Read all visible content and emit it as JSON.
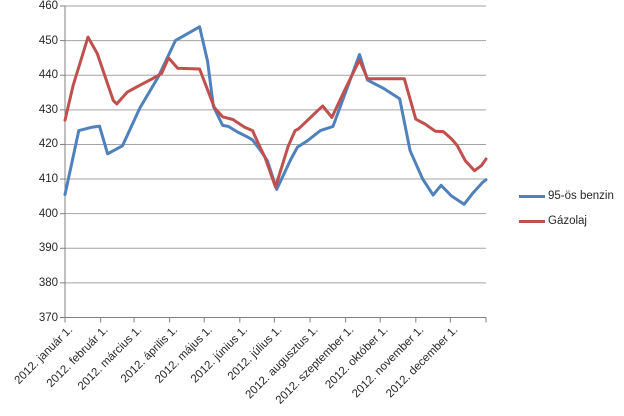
{
  "chart_data": {
    "type": "line",
    "title": "",
    "xlabel": "",
    "ylabel": "",
    "ylim": [
      370,
      460
    ],
    "yticks": [
      370,
      380,
      390,
      400,
      410,
      420,
      430,
      440,
      450,
      460
    ],
    "grid": true,
    "legend_position": "right",
    "gridline_color": "#a3a3a3",
    "axis_color": "#808080",
    "text_color": "#262626",
    "x_unit": "day_of_year_2012",
    "x_range_days": [
      0,
      366
    ],
    "xticks": [
      {
        "day": 0,
        "label": "2012. január 1."
      },
      {
        "day": 31,
        "label": "2012. február 1."
      },
      {
        "day": 60,
        "label": "2012. március 1."
      },
      {
        "day": 91,
        "label": "2012. április 1."
      },
      {
        "day": 121,
        "label": "2012. május 1."
      },
      {
        "day": 152,
        "label": "2012. június 1."
      },
      {
        "day": 182,
        "label": "2012. július 1."
      },
      {
        "day": 213,
        "label": "2012. augusztus 1."
      },
      {
        "day": 244,
        "label": "2012. szeptember 1."
      },
      {
        "day": 274,
        "label": "2012. október 1."
      },
      {
        "day": 305,
        "label": "2012. november 1."
      },
      {
        "day": 335,
        "label": "2012. december 1."
      },
      {
        "day": 366,
        "label": ""
      }
    ],
    "series": [
      {
        "id": "benzin",
        "name": "95-ös benzin",
        "color": "#4f81bd",
        "points": [
          [
            0,
            405.5
          ],
          [
            12,
            424
          ],
          [
            24,
            425
          ],
          [
            30,
            425.3
          ],
          [
            37,
            417.3
          ],
          [
            50,
            419.6
          ],
          [
            65,
            430.5
          ],
          [
            81,
            439.5
          ],
          [
            96,
            450
          ],
          [
            117,
            454
          ],
          [
            124,
            444
          ],
          [
            129,
            431
          ],
          [
            137,
            425.5
          ],
          [
            142,
            425.2
          ],
          [
            150,
            423.6
          ],
          [
            159,
            422.1
          ],
          [
            163,
            421.3
          ],
          [
            169,
            418.7
          ],
          [
            176,
            415.3
          ],
          [
            184,
            407
          ],
          [
            196,
            415.5
          ],
          [
            202,
            419.2
          ],
          [
            211,
            421.1
          ],
          [
            222,
            424
          ],
          [
            233,
            425.2
          ],
          [
            256,
            446
          ],
          [
            263,
            438.6
          ],
          [
            277,
            436.2
          ],
          [
            291,
            433.2
          ],
          [
            300,
            418.2
          ],
          [
            311,
            410
          ],
          [
            320,
            405.4
          ],
          [
            327,
            408.2
          ],
          [
            336,
            405.1
          ],
          [
            347,
            402.7
          ],
          [
            355,
            406.1
          ],
          [
            363,
            409
          ],
          [
            366,
            409.8
          ]
        ]
      },
      {
        "id": "gazolaj",
        "name": "Gázolaj",
        "color": "#c0504d",
        "points": [
          [
            0,
            427
          ],
          [
            7,
            437
          ],
          [
            20,
            451
          ],
          [
            28,
            446.3
          ],
          [
            36,
            438.5
          ],
          [
            42,
            432.7
          ],
          [
            45,
            431.7
          ],
          [
            54,
            435.1
          ],
          [
            65,
            437.1
          ],
          [
            76,
            439
          ],
          [
            84,
            440.5
          ],
          [
            90,
            445
          ],
          [
            98,
            442
          ],
          [
            117,
            441.8
          ],
          [
            130,
            430.6
          ],
          [
            137,
            428
          ],
          [
            146,
            427.2
          ],
          [
            156,
            425
          ],
          [
            163,
            424
          ],
          [
            169,
            419.6
          ],
          [
            174,
            416.2
          ],
          [
            183,
            407.7
          ],
          [
            194,
            419.5
          ],
          [
            200,
            424
          ],
          [
            203,
            424.5
          ],
          [
            211,
            427
          ],
          [
            220,
            429.9
          ],
          [
            224,
            431.1
          ],
          [
            232,
            427.8
          ],
          [
            243,
            435.6
          ],
          [
            256,
            444.4
          ],
          [
            263,
            439
          ],
          [
            295,
            439
          ],
          [
            305,
            427.3
          ],
          [
            313,
            425.9
          ],
          [
            322,
            423.8
          ],
          [
            329,
            423.7
          ],
          [
            336,
            421.6
          ],
          [
            341,
            419.7
          ],
          [
            348,
            415.3
          ],
          [
            356,
            412.4
          ],
          [
            362,
            413.9
          ],
          [
            366,
            415.8
          ]
        ]
      }
    ]
  },
  "legend": {
    "items": [
      {
        "label": "95-ös benzin"
      },
      {
        "label": "Gázolaj"
      }
    ]
  }
}
